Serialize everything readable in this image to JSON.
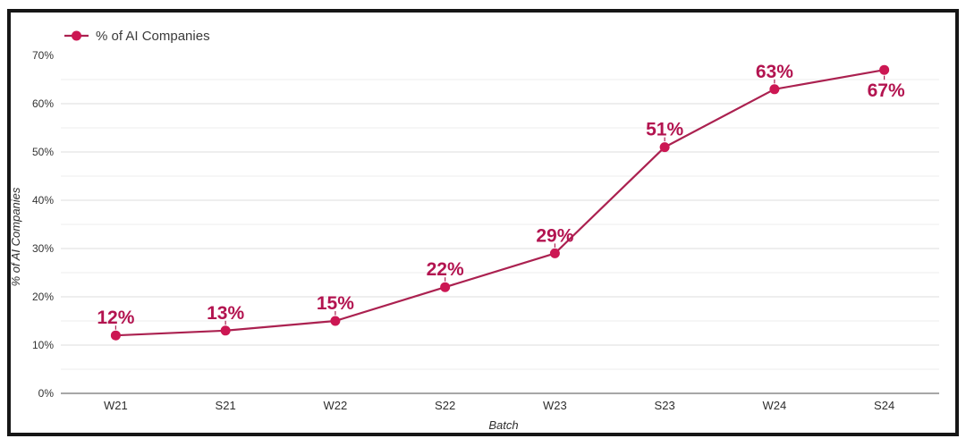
{
  "chart_data": {
    "type": "line",
    "title": "",
    "legend": "% of AI Companies",
    "xlabel": "Batch",
    "ylabel": "% of AI Companies",
    "categories": [
      "W21",
      "S21",
      "W22",
      "S22",
      "W23",
      "S23",
      "W24",
      "S24"
    ],
    "values": [
      12,
      13,
      15,
      22,
      29,
      51,
      63,
      67
    ],
    "point_labels": [
      "12%",
      "13%",
      "15%",
      "22%",
      "29%",
      "51%",
      "63%",
      "67%"
    ],
    "ylim": [
      0,
      70
    ],
    "ytick_step": 10,
    "ytick_labels": [
      "0%",
      "10%",
      "20%",
      "30%",
      "40%",
      "50%",
      "60%",
      "70%"
    ],
    "minor_grid_step": 5,
    "grid": true,
    "legend_position": "top-left",
    "colors": {
      "line": "#ab2150",
      "marker": "#cc1753",
      "point_label": "#b31450",
      "grid_major": "#dcdcdc",
      "grid_minor": "#eeeeee",
      "axis_line": "#8a8a8a"
    }
  }
}
